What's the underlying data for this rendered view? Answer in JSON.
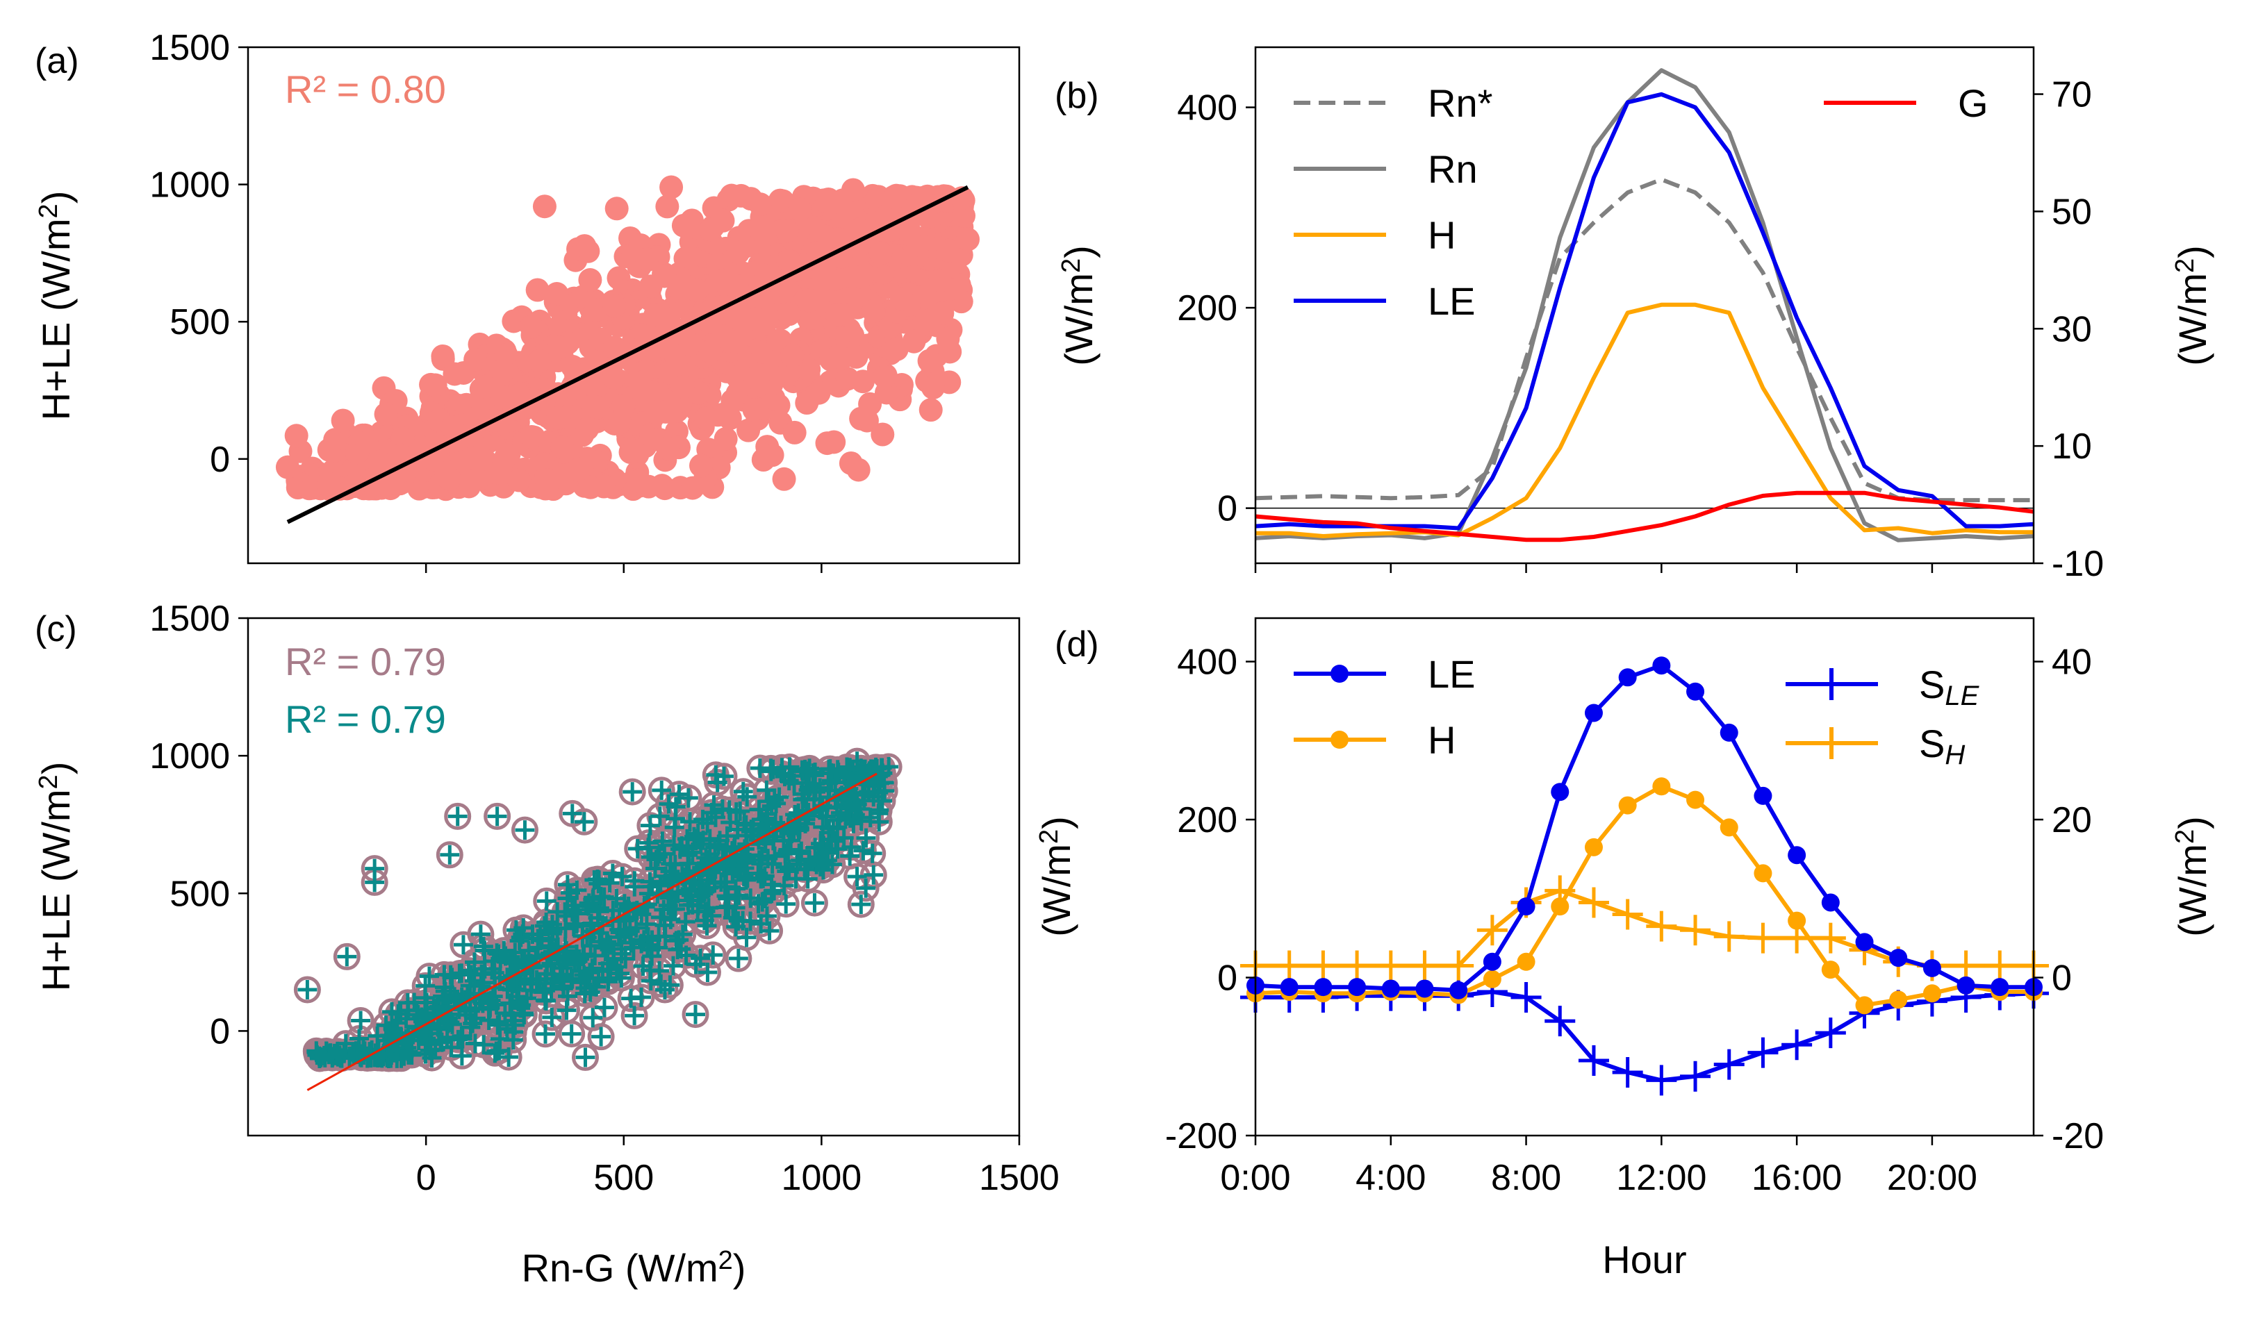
{
  "chart_data": [
    {
      "panel": "(a)",
      "type": "scatter",
      "xlabel": "",
      "ylabel": "H+LE (W/m²)",
      "xlim": [
        -450,
        1500
      ],
      "ylim": [
        -380,
        1500
      ],
      "xticks": [
        0,
        500,
        1000
      ],
      "yticks": [
        0,
        500,
        1000,
        1500
      ],
      "annotations": [
        {
          "text": "R² = 0.80",
          "color": "#f08070"
        }
      ],
      "series": [
        {
          "name": "observations",
          "color": "#f88580",
          "note": "dense cloud of half-hourly points spanning Rn-G ≈ -350 to 1370 W/m²"
        },
        {
          "name": "fit",
          "color": "#000000",
          "x": [
            -350,
            1370
          ],
          "y": [
            -230,
            990
          ]
        }
      ]
    },
    {
      "panel": "(b)",
      "type": "line",
      "xlabel": "",
      "ylabel": "(W/m²)",
      "y2label": "(W/m²)",
      "xlim": [
        0,
        23
      ],
      "ylim": [
        -55,
        460
      ],
      "y2lim": [
        -10,
        78
      ],
      "yticks": [
        0,
        200,
        400
      ],
      "y2ticks": [
        -10,
        10,
        30,
        50,
        70
      ],
      "legend_left": [
        "Rn*",
        "Rn",
        "H",
        "LE"
      ],
      "legend_right": [
        "G"
      ],
      "x": [
        0,
        1,
        2,
        3,
        4,
        5,
        6,
        7,
        8,
        9,
        10,
        11,
        12,
        13,
        14,
        15,
        16,
        17,
        18,
        19,
        20,
        21,
        22,
        23
      ],
      "series": [
        {
          "name": "Rn*",
          "axis": "left",
          "color": "#808080",
          "dash": true,
          "values": [
            10,
            11,
            12,
            11,
            10,
            11,
            13,
            40,
            150,
            250,
            285,
            315,
            328,
            315,
            285,
            235,
            160,
            90,
            25,
            10,
            8,
            8,
            8,
            8
          ]
        },
        {
          "name": "Rn",
          "axis": "left",
          "color": "#808080",
          "values": [
            -30,
            -28,
            -30,
            -28,
            -27,
            -30,
            -25,
            50,
            140,
            270,
            360,
            405,
            437,
            420,
            375,
            285,
            170,
            60,
            -15,
            -32,
            -30,
            -28,
            -30,
            -28
          ]
        },
        {
          "name": "H",
          "axis": "left",
          "color": "#ffa500",
          "values": [
            -25,
            -25,
            -28,
            -26,
            -25,
            -24,
            -27,
            -10,
            10,
            60,
            130,
            195,
            203,
            203,
            195,
            120,
            65,
            10,
            -22,
            -20,
            -25,
            -22,
            -24,
            -24
          ]
        },
        {
          "name": "LE",
          "axis": "left",
          "color": "#0000ee",
          "values": [
            -18,
            -16,
            -18,
            -18,
            -18,
            -18,
            -20,
            30,
            100,
            220,
            330,
            405,
            413,
            400,
            355,
            275,
            190,
            120,
            42,
            18,
            12,
            -18,
            -18,
            -16
          ]
        },
        {
          "name": "G",
          "axis": "right",
          "color": "#ff0000",
          "values": [
            -2,
            -2.5,
            -3,
            -3.2,
            -4,
            -4.5,
            -5,
            -5.5,
            -6,
            -6,
            -5.5,
            -4.5,
            -3.5,
            -2,
            0,
            1.5,
            2,
            2,
            2,
            1,
            0.5,
            0,
            -0.5,
            -1.2
          ]
        }
      ]
    },
    {
      "panel": "(c)",
      "type": "scatter",
      "xlabel": "Rn-G (W/m²)",
      "ylabel": "H+LE (W/m²)",
      "xlim": [
        -450,
        1500
      ],
      "ylim": [
        -380,
        1500
      ],
      "xticks": [
        0,
        500,
        1000,
        1500
      ],
      "yticks": [
        0,
        500,
        1000,
        1500
      ],
      "annotations": [
        {
          "text": "R² = 0.79",
          "color": "#a67b89"
        },
        {
          "text": "R² = 0.79",
          "color": "#0a8a8a"
        }
      ],
      "series": [
        {
          "name": "open circles",
          "color": "#a67b89",
          "note": "hollow circle markers"
        },
        {
          "name": "plus markers",
          "color": "#0a8a8a",
          "note": "plus markers overlaid on circles"
        },
        {
          "name": "fit",
          "color": "#ee2200",
          "x": [
            -300,
            1140
          ],
          "y": [
            -215,
            935
          ]
        }
      ]
    },
    {
      "panel": "(d)",
      "type": "line",
      "xlabel": "Hour",
      "ylabel": "(W/m²)",
      "y2label": "(W/m²)",
      "xlim": [
        0,
        23
      ],
      "ylim": [
        -200,
        455
      ],
      "y2lim": [
        -20,
        45.5
      ],
      "xticks": [
        0,
        4,
        8,
        12,
        16,
        20
      ],
      "xticklabels": [
        "0:00",
        "4:00",
        "8:00",
        "12:00",
        "16:00",
        "20:00"
      ],
      "yticks": [
        -200,
        0,
        200,
        400
      ],
      "y2ticks": [
        -20,
        0,
        20,
        40
      ],
      "legend_left": [
        "LE",
        "H"
      ],
      "legend_right": [
        "S",
        "S"
      ],
      "legend_right_sub": [
        "LE",
        "H"
      ],
      "x": [
        0,
        1,
        2,
        3,
        4,
        5,
        6,
        7,
        8,
        9,
        10,
        11,
        12,
        13,
        14,
        15,
        16,
        17,
        18,
        19,
        20,
        21,
        22,
        23
      ],
      "series": [
        {
          "name": "LE",
          "axis": "left",
          "color": "#0000ee",
          "marker": "circle",
          "values": [
            -10,
            -12,
            -12,
            -12,
            -14,
            -14,
            -16,
            20,
            90,
            235,
            335,
            380,
            395,
            362,
            310,
            230,
            155,
            95,
            45,
            25,
            12,
            -10,
            -12,
            -12
          ]
        },
        {
          "name": "H",
          "axis": "left",
          "color": "#ffa500",
          "marker": "circle",
          "values": [
            -20,
            -18,
            -20,
            -20,
            -18,
            -20,
            -22,
            -2,
            20,
            90,
            165,
            218,
            242,
            225,
            190,
            132,
            72,
            10,
            -35,
            -28,
            -20,
            -10,
            -18,
            -18
          ]
        },
        {
          "name": "S_LE",
          "axis": "right",
          "color": "#0000ee",
          "marker": "plus",
          "values": [
            -2.5,
            -2.5,
            -2.5,
            -2.3,
            -2.3,
            -2.3,
            -2.3,
            -1.8,
            -2.5,
            -5.5,
            -10.5,
            -12,
            -13,
            -12.5,
            -11,
            -9.5,
            -8.5,
            -7,
            -4.5,
            -3.5,
            -3,
            -2.5,
            -2.2,
            -2
          ]
        },
        {
          "name": "S_H",
          "axis": "right",
          "color": "#ffa500",
          "marker": "plus",
          "values": [
            1.5,
            1.5,
            1.5,
            1.5,
            1.5,
            1.5,
            1.5,
            6,
            9.5,
            11,
            9.5,
            8,
            6.5,
            6,
            5.2,
            5,
            5,
            5,
            3.5,
            2,
            1.5,
            1.5,
            1.5,
            1.5
          ]
        }
      ]
    }
  ]
}
